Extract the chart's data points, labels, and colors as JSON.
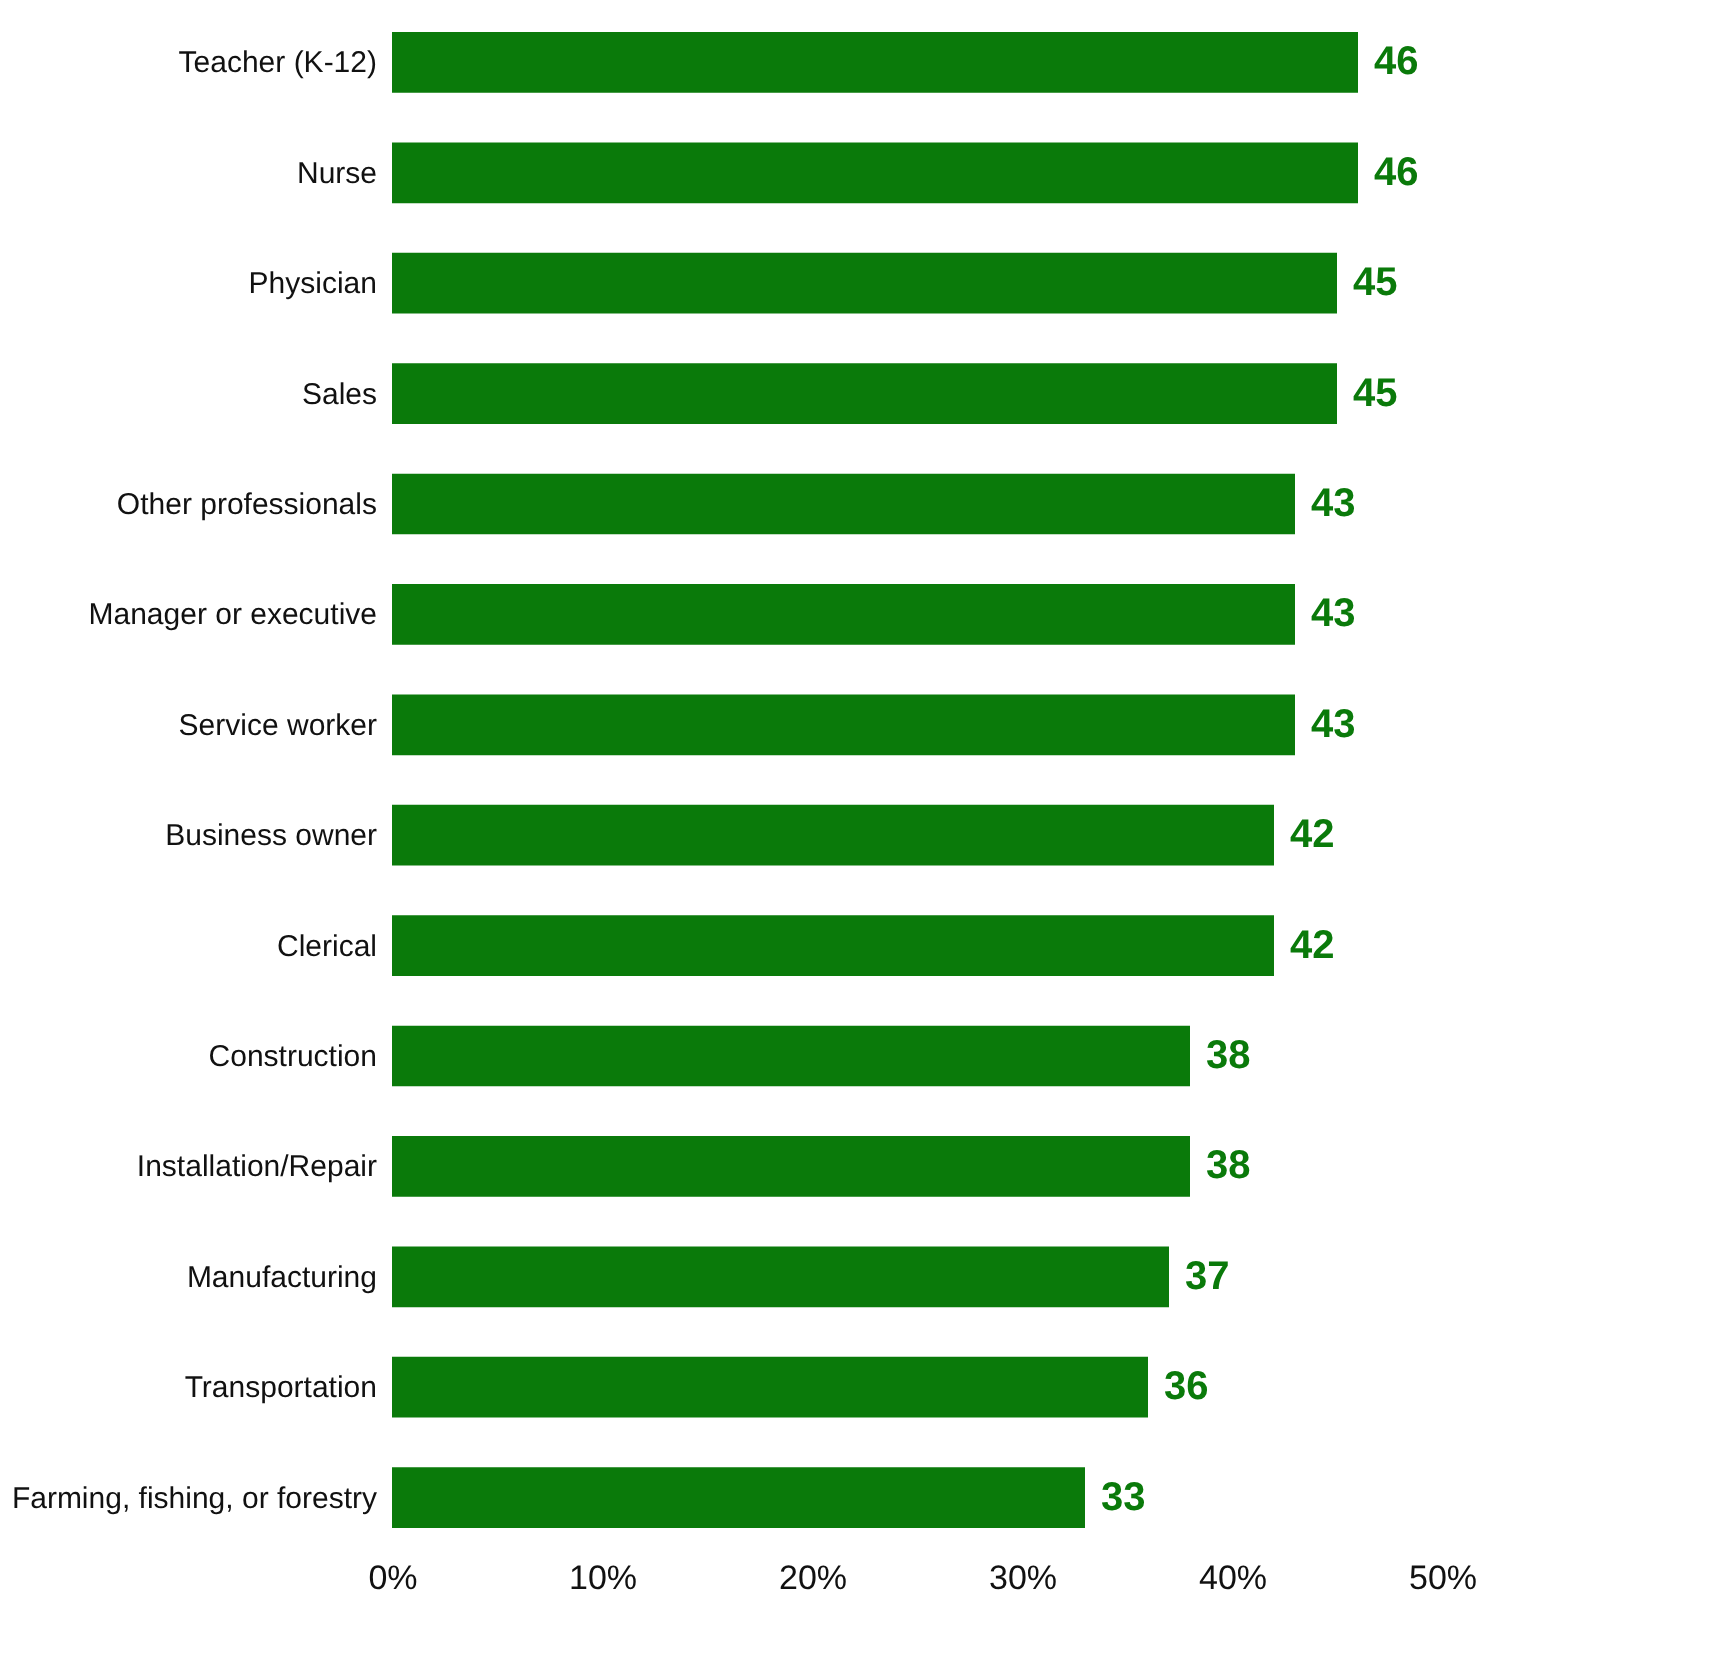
{
  "chart_data": {
    "type": "bar",
    "orientation": "horizontal",
    "categories": [
      "Teacher (K-12)",
      "Nurse",
      "Physician",
      "Sales",
      "Other professionals",
      "Manager or executive",
      "Service worker",
      "Business owner",
      "Clerical",
      "Construction",
      "Installation/Repair",
      "Manufacturing",
      "Transportation",
      "Farming, fishing, or forestry"
    ],
    "values": [
      46,
      46,
      45,
      45,
      43,
      43,
      43,
      42,
      42,
      38,
      38,
      37,
      36,
      33
    ],
    "color": "#0a7a0a",
    "xlim": [
      0,
      50
    ],
    "xticks": [
      {
        "value": 0,
        "label": "0%"
      },
      {
        "value": 10,
        "label": "10%"
      },
      {
        "value": 20,
        "label": "20%"
      },
      {
        "value": 30,
        "label": "30%"
      },
      {
        "value": 40,
        "label": "40%"
      },
      {
        "value": 50,
        "label": "50%"
      }
    ],
    "data_labels": true,
    "grid": false
  }
}
